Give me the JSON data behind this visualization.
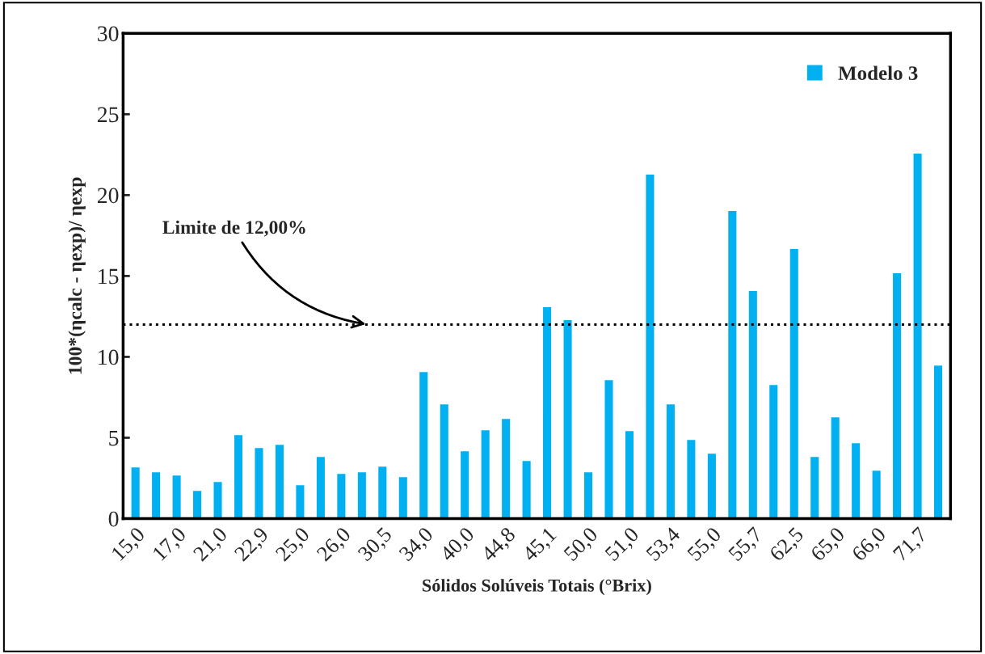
{
  "chart_data": {
    "type": "bar",
    "xlabel": "Sólidos Solúveis Totais (°Brix)",
    "ylabel": "100*(ηcalc - ηexp)/ ηexp",
    "categories": [
      "15,0",
      null,
      "17,0",
      null,
      "21,0",
      null,
      "22,9",
      null,
      "25,0",
      null,
      "26,0",
      null,
      "30,5",
      null,
      "34,0",
      null,
      "40,0",
      null,
      "44,8",
      null,
      "45,1",
      null,
      "50,0",
      null,
      "51,0",
      null,
      "53,4",
      null,
      "55,0",
      null,
      "55,7",
      null,
      "62,5",
      null,
      "65,0",
      null,
      "66,0",
      null,
      "71,7",
      null
    ],
    "series": [
      {
        "name": "Modelo 3",
        "color": "#00b0f0",
        "values": [
          3.2,
          2.9,
          2.7,
          1.75,
          2.3,
          5.2,
          4.4,
          4.6,
          2.1,
          3.85,
          2.8,
          2.9,
          3.25,
          2.6,
          9.1,
          7.1,
          4.2,
          5.5,
          6.2,
          3.6,
          13.1,
          12.3,
          2.9,
          8.6,
          5.45,
          21.3,
          7.1,
          4.9,
          4.05,
          19.05,
          14.1,
          8.3,
          16.7,
          3.85,
          6.3,
          4.7,
          3.0,
          15.2,
          22.6,
          9.5
        ]
      }
    ],
    "ylim": [
      0,
      30
    ],
    "yticks": [
      0,
      5,
      10,
      15,
      20,
      25,
      30
    ],
    "ref_lines": [
      {
        "axis": "y",
        "value": 12,
        "label": "Limite de 12,00%",
        "color": "#000000",
        "line_style": "dotted"
      }
    ],
    "legend": "top right",
    "grid": false
  }
}
